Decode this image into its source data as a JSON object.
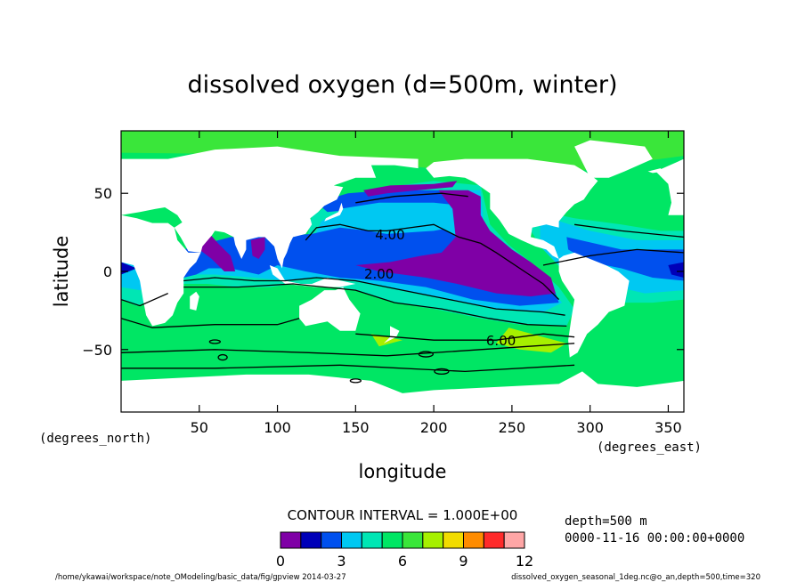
{
  "chart_data": {
    "type": "heatmap",
    "title": "dissolved oxygen (d=500m, winter)",
    "xlabel": "longitude",
    "ylabel": "latitude",
    "x_unit_label": "(degrees_east)",
    "y_unit_label": "(degrees_north)",
    "xlim": [
      0,
      360
    ],
    "ylim": [
      -90,
      90
    ],
    "x_ticks": [
      50,
      100,
      150,
      200,
      250,
      300,
      350
    ],
    "y_ticks": [
      50,
      0,
      -50
    ],
    "x_tick_labels": [
      "50",
      "100",
      "150",
      "200",
      "250",
      "300",
      "350"
    ],
    "y_tick_labels": [
      "50",
      "0",
      "−50"
    ],
    "contour_labels": [
      {
        "text": "4.00",
        "lon": 172,
        "lat": 24
      },
      {
        "text": "2.00",
        "lon": 165,
        "lat": -1
      },
      {
        "text": "6.00",
        "lon": 243,
        "lat": -44
      }
    ],
    "contour_interval_text": "CONTOUR INTERVAL = 1.000E+00",
    "levels": [
      0,
      1,
      2,
      3,
      4,
      5,
      6,
      7,
      8,
      9,
      10,
      11,
      12
    ],
    "colorbar_tick_labels": [
      "0",
      "3",
      "6",
      "9",
      "12"
    ],
    "colorbar_ticks": [
      0,
      3,
      6,
      9,
      12
    ],
    "colorbar_colors": [
      "#7f00a6",
      "#0000b8",
      "#0050ee",
      "#00c8f2",
      "#00e6b4",
      "#00e664",
      "#3ae63a",
      "#a6f000",
      "#f2dc00",
      "#ff8c00",
      "#ff2a2a",
      "#ffa6a6"
    ],
    "info_lines": [
      "depth=500 m",
      "0000-11-16 00:00:00+0000"
    ],
    "footer_left": "/home/ykawai/workspace/note_OModeling/basic_data/fig/gpview 2014-03-27",
    "footer_right": "dissolved_oxygen_seasonal_1deg.nc@o_an,depth=500,time=320",
    "land_color": "#ffffff"
  }
}
